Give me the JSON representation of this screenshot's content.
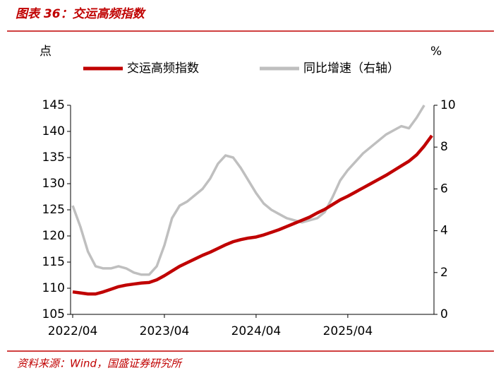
{
  "chart_data": {
    "type": "line",
    "title": "图表 36：交运高频指数",
    "source": "资料来源：Wind，国盛证券研究所",
    "y_label": "点",
    "y2_label": "%",
    "x": [
      "2022/04",
      "2022/05",
      "2022/06",
      "2022/07",
      "2022/08",
      "2022/09",
      "2022/10",
      "2022/11",
      "2022/12",
      "2023/01",
      "2023/02",
      "2023/03",
      "2023/04",
      "2023/05",
      "2023/06",
      "2023/07",
      "2023/08",
      "2023/09",
      "2023/10",
      "2023/11",
      "2023/12",
      "2024/01",
      "2024/02",
      "2024/03",
      "2024/04",
      "2024/05",
      "2024/06",
      "2024/07",
      "2024/08",
      "2024/09",
      "2024/10",
      "2024/11",
      "2024/12",
      "2025/01",
      "2025/02",
      "2025/03",
      "2025/04",
      "2025/05",
      "2025/06",
      "2025/07",
      "2025/08",
      "2025/09",
      "2025/10",
      "2025/11",
      "2025/12",
      "2026/01",
      "2026/02",
      "2026/03"
    ],
    "xticks": [
      "2022/04",
      "2023/04",
      "2024/04",
      "2025/04"
    ],
    "ylim": [
      105,
      145
    ],
    "yticks": [
      105,
      110,
      115,
      120,
      125,
      130,
      135,
      140,
      145
    ],
    "y2lim": [
      0,
      10
    ],
    "y2ticks": [
      0,
      2,
      4,
      6,
      8,
      10
    ],
    "legend": "top",
    "series": [
      {
        "name": "交运高频指数",
        "color": "#c00000",
        "values": [
          109.3,
          109.1,
          108.9,
          108.9,
          109.3,
          109.8,
          110.3,
          110.6,
          110.8,
          111,
          111.1,
          111.6,
          112.4,
          113.3,
          114.2,
          114.9,
          115.6,
          116.3,
          116.9,
          117.6,
          118.3,
          118.9,
          119.3,
          119.6,
          119.8,
          120.2,
          120.7,
          121.2,
          121.8,
          122.4,
          123,
          123.6,
          124.4,
          125.1,
          126,
          126.9,
          127.6,
          128.4,
          129.2,
          130,
          130.8,
          131.6,
          132.5,
          133.4,
          134.3,
          135.5,
          137.2,
          139.2
        ]
      },
      {
        "name": "同比增速（右轴）",
        "color": "#bfbfbf",
        "axis": "y2",
        "values": [
          5.2,
          4.2,
          3.0,
          2.3,
          2.2,
          2.2,
          2.3,
          2.2,
          2.0,
          1.9,
          1.9,
          2.3,
          3.3,
          4.6,
          5.2,
          5.4,
          5.7,
          6.0,
          6.5,
          7.2,
          7.6,
          7.5,
          7.0,
          6.4,
          5.8,
          5.3,
          5.0,
          4.8,
          4.6,
          4.5,
          4.4,
          4.5,
          4.6,
          4.9,
          5.6,
          6.4,
          6.9,
          7.3,
          7.7,
          8.0,
          8.3,
          8.6,
          8.8,
          9.0,
          8.9,
          9.4,
          10.0,
          null
        ]
      }
    ]
  }
}
